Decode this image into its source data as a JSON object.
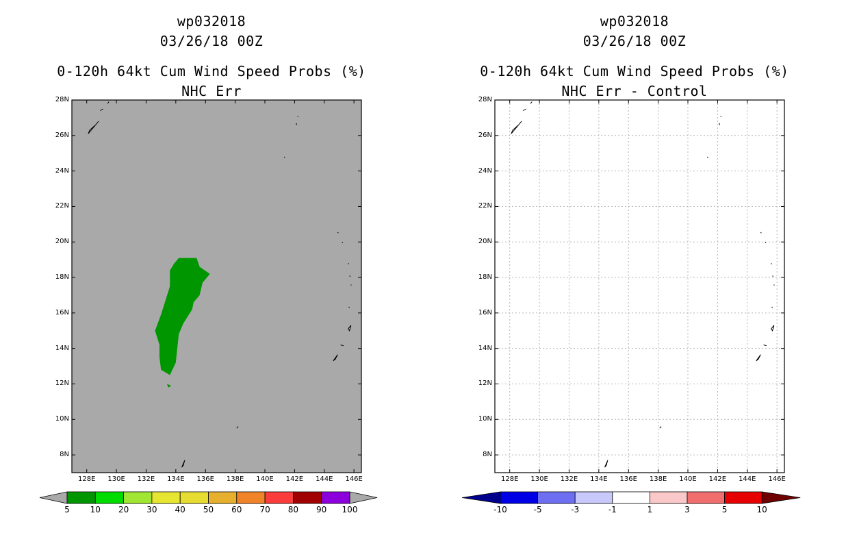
{
  "colors": {
    "background": "#ffffff",
    "left_fill": "#a9a9a9",
    "green_region": "#009600",
    "grid": "#b4b4b4",
    "coast": "#000000",
    "cb_arrow_gray": "#a9a9a9",
    "cb_arrow_low": "#00008c",
    "cb_arrow_high": "#6e0000"
  },
  "icons": [
    "coastline-outline-shape"
  ],
  "chart_data": [
    {
      "type": "heatmap",
      "storm": "wp032018",
      "date": "03/26/18 00Z",
      "title": "0-120h 64kt Cum Wind Speed Probs (%)",
      "subtitle": "NHC Err",
      "xlim": [
        127,
        146.5
      ],
      "ylim": [
        7,
        28
      ],
      "xticks": [
        128,
        130,
        132,
        134,
        136,
        138,
        140,
        142,
        144,
        146
      ],
      "xticklabels": [
        "128E",
        "130E",
        "132E",
        "134E",
        "136E",
        "138E",
        "140E",
        "142E",
        "144E",
        "146E"
      ],
      "yticks": [
        8,
        10,
        12,
        14,
        16,
        18,
        20,
        22,
        24,
        26,
        28
      ],
      "yticklabels": [
        "8N",
        "10N",
        "12N",
        "14N",
        "16N",
        "18N",
        "20N",
        "22N",
        "24N",
        "26N"
      ],
      "grid": false,
      "field_description": "5-10% probability region over Philippine Sea, approx 132.7E-136.7E, 12.5N-19.1N",
      "region_5_10": [
        [
          134.2,
          19.1
        ],
        [
          135.4,
          19.1
        ],
        [
          135.6,
          18.6
        ],
        [
          136.3,
          18.2
        ],
        [
          135.8,
          17.7
        ],
        [
          135.6,
          17.0
        ],
        [
          135.2,
          16.6
        ],
        [
          135.1,
          16.2
        ],
        [
          134.8,
          15.8
        ],
        [
          134.5,
          15.4
        ],
        [
          134.2,
          14.8
        ],
        [
          134.1,
          14.0
        ],
        [
          134.0,
          13.2
        ],
        [
          133.6,
          12.5
        ],
        [
          133.0,
          12.8
        ],
        [
          132.9,
          13.5
        ],
        [
          132.9,
          14.2
        ],
        [
          132.6,
          15.0
        ],
        [
          133.0,
          15.9
        ],
        [
          133.3,
          16.7
        ],
        [
          133.6,
          17.5
        ],
        [
          133.6,
          18.4
        ],
        [
          133.9,
          18.8
        ]
      ],
      "region_small": [
        [
          133.4,
          12.0
        ],
        [
          133.7,
          11.9
        ],
        [
          133.5,
          11.8
        ]
      ],
      "colorbar": {
        "levels": [
          "5",
          "10",
          "20",
          "30",
          "40",
          "50",
          "60",
          "70",
          "80",
          "90",
          "100"
        ],
        "colors": [
          "#009600",
          "#00dc00",
          "#a0e632",
          "#e6e632",
          "#e6dc32",
          "#e6af2d",
          "#f08228",
          "#fa3c3c",
          "#a00000",
          "#8c00dc"
        ],
        "end_arrows": "gray"
      }
    },
    {
      "type": "heatmap",
      "storm": "wp032018",
      "date": "03/26/18 00Z",
      "title": "0-120h 64kt Cum Wind Speed Probs (%)",
      "subtitle": "NHC Err - Control",
      "xlim": [
        127,
        146.5
      ],
      "ylim": [
        7,
        28
      ],
      "xticks": [
        128,
        130,
        132,
        134,
        136,
        138,
        140,
        142,
        144,
        146
      ],
      "xticklabels": [
        "128E",
        "130E",
        "132E",
        "134E",
        "136E",
        "138E",
        "140E",
        "142E",
        "144E",
        "146E"
      ],
      "yticklabels": [
        "8N",
        "10N",
        "12N",
        "14N",
        "16N",
        "18N",
        "20N",
        "22N",
        "24N",
        "26N"
      ],
      "grid": true,
      "field_description": "all values between -1 and 1 (white)",
      "colorbar": {
        "levels": [
          "-10",
          "-5",
          "-3",
          "-1",
          "1",
          "3",
          "5",
          "10"
        ],
        "colors": [
          "#0000e6",
          "#6e6ef0",
          "#c8c8fa",
          "#ffffff",
          "#fac8c8",
          "#f06e6e",
          "#e60000"
        ],
        "end_arrows": "dark"
      }
    }
  ],
  "top_labels": {
    "corner_28n": "28N"
  },
  "islands": [
    [
      [
        128.1,
        26.1
      ],
      [
        128.4,
        26.4
      ],
      [
        128.8,
        26.8
      ],
      [
        128.6,
        26.6
      ],
      [
        128.2,
        26.3
      ]
    ],
    [
      [
        128.9,
        27.4
      ],
      [
        129.1,
        27.5
      ]
    ],
    [
      [
        129.4,
        27.8
      ],
      [
        129.5,
        27.9
      ]
    ],
    [
      [
        142.2,
        27.1
      ],
      [
        142.25,
        27.05
      ]
    ],
    [
      [
        142.1,
        26.7
      ],
      [
        142.15,
        26.6
      ]
    ],
    [
      [
        141.3,
        24.8
      ],
      [
        141.35,
        24.75
      ]
    ],
    [
      [
        144.9,
        20.55
      ],
      [
        144.95,
        20.5
      ]
    ],
    [
      [
        145.2,
        20.0
      ],
      [
        145.25,
        19.95
      ]
    ],
    [
      [
        145.6,
        18.8
      ],
      [
        145.65,
        18.75
      ]
    ],
    [
      [
        145.7,
        18.1
      ],
      [
        145.75,
        18.05
      ]
    ],
    [
      [
        145.8,
        17.6
      ],
      [
        145.82,
        17.55
      ]
    ],
    [
      [
        145.65,
        16.35
      ],
      [
        145.7,
        16.3
      ]
    ],
    [
      [
        145.6,
        15.1
      ],
      [
        145.8,
        15.3
      ],
      [
        145.7,
        15.0
      ]
    ],
    [
      [
        145.1,
        14.2
      ],
      [
        145.3,
        14.15
      ]
    ],
    [
      [
        144.6,
        13.3
      ],
      [
        144.9,
        13.65
      ],
      [
        144.75,
        13.4
      ]
    ],
    [
      [
        138.1,
        9.5
      ],
      [
        138.2,
        9.6
      ]
    ],
    [
      [
        134.4,
        7.3
      ],
      [
        134.6,
        7.7
      ],
      [
        134.5,
        7.4
      ]
    ]
  ]
}
